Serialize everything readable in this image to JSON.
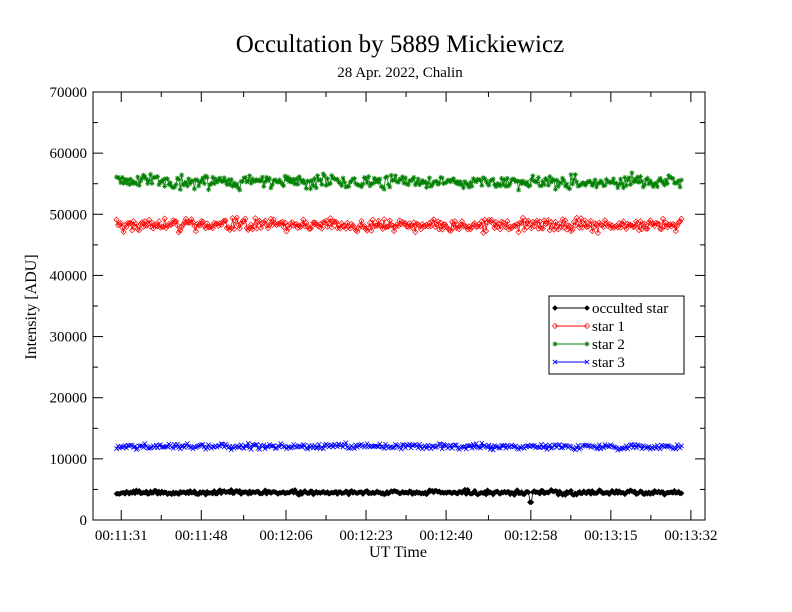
{
  "chart_data": {
    "type": "line",
    "title": "Occultation by 5889 Mickiewicz",
    "subtitle": "28 Apr. 2022, Chalin",
    "xlabel": "UT Time",
    "ylabel": "Intensity [ADU]",
    "ylim": [
      0,
      70000
    ],
    "yticks": [
      0,
      10000,
      20000,
      30000,
      40000,
      50000,
      60000,
      70000
    ],
    "xlim_seconds": [
      "00:11:25",
      "00:13:35"
    ],
    "xticks": [
      "00:11:31",
      "00:11:48",
      "00:12:06",
      "00:12:23",
      "00:12:40",
      "00:12:58",
      "00:13:15",
      "00:13:32"
    ],
    "x_range": {
      "start": "00:11:30",
      "end": "00:13:30",
      "samples": 400
    },
    "grid": false,
    "legend_position": "right-middle",
    "series": [
      {
        "name": "occulted star",
        "color": "#000000",
        "marker": "diamond-filled",
        "mean": 4500,
        "amplitude": 550,
        "dip": {
          "time": "00:12:58",
          "value": 2900
        }
      },
      {
        "name": "star 1",
        "color": "#ff0000",
        "marker": "diamond-open",
        "mean": 48300,
        "amplitude": 1500
      },
      {
        "name": "star 2",
        "color": "#008000",
        "marker": "star",
        "mean": 55300,
        "amplitude": 1600
      },
      {
        "name": "star 3",
        "color": "#0000ff",
        "marker": "x",
        "mean": 12000,
        "amplitude": 700
      }
    ]
  }
}
